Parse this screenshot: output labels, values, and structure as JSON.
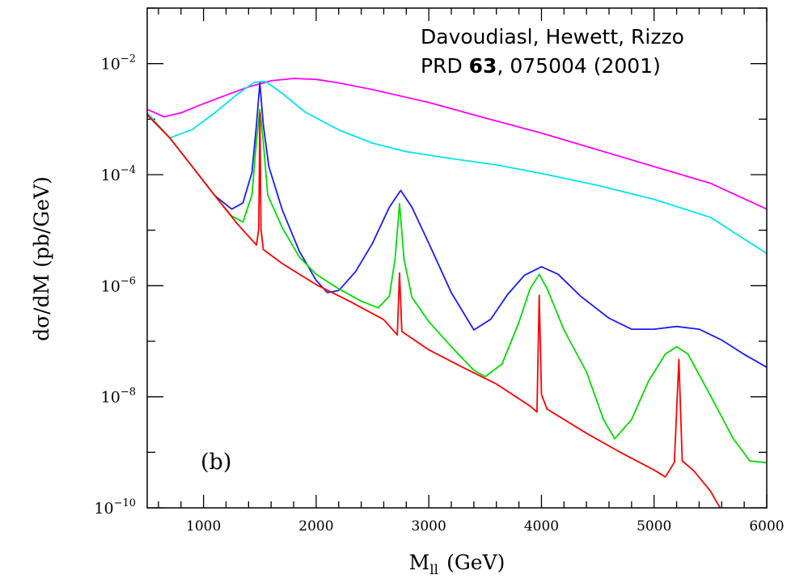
{
  "chart_data": {
    "type": "line",
    "xlabel_main": "M",
    "xlabel_sub": "ll",
    "xlabel_unit": "(GeV)",
    "ylabel": "dσ/dM (pb/GeV)",
    "xlim": [
      500,
      6000
    ],
    "ylim": [
      1e-10,
      0.1
    ],
    "yscale": "log",
    "x_ticks": [
      1000,
      2000,
      3000,
      4000,
      5000,
      6000
    ],
    "y_ticks": [
      {
        "value": 1e-10,
        "base": "10",
        "exp": "−10"
      },
      {
        "value": 1e-08,
        "base": "10",
        "exp": "−8"
      },
      {
        "value": 1e-06,
        "base": "10",
        "exp": "−6"
      },
      {
        "value": 0.0001,
        "base": "10",
        "exp": "−4"
      },
      {
        "value": 0.01,
        "base": "10",
        "exp": "−2"
      }
    ],
    "annotation": {
      "line1": "Davoudiasl, Hewett, Rizzo",
      "line2_prefix": "PRD ",
      "line2_bold": "63",
      "line2_suffix": ", 075004 (2001)"
    },
    "panel_label": "(b)",
    "series": [
      {
        "color": "#ff00ff",
        "points": [
          [
            500,
            0.0015
          ],
          [
            650,
            0.0011
          ],
          [
            800,
            0.0013
          ],
          [
            1000,
            0.0019
          ],
          [
            1200,
            0.0027
          ],
          [
            1400,
            0.0038
          ],
          [
            1600,
            0.0049
          ],
          [
            1800,
            0.0054
          ],
          [
            2000,
            0.0052
          ],
          [
            2200,
            0.0045
          ],
          [
            2500,
            0.0034
          ],
          [
            3000,
            0.002
          ],
          [
            3500,
            0.00105
          ],
          [
            4000,
            0.00056
          ],
          [
            4500,
            0.00028
          ],
          [
            5000,
            0.00014
          ],
          [
            5500,
            7e-05
          ],
          [
            6000,
            2.4e-05
          ]
        ]
      },
      {
        "color": "#00e5ee",
        "points": [
          [
            500,
            0.0013
          ],
          [
            700,
            0.00046
          ],
          [
            900,
            0.00065
          ],
          [
            1100,
            0.0013
          ],
          [
            1300,
            0.0028
          ],
          [
            1450,
            0.0046
          ],
          [
            1550,
            0.0048
          ],
          [
            1700,
            0.0029
          ],
          [
            1900,
            0.00135
          ],
          [
            2200,
            0.00064
          ],
          [
            2500,
            0.00037
          ],
          [
            2800,
            0.00026
          ],
          [
            3200,
            0.000195
          ],
          [
            3600,
            0.00015
          ],
          [
            4000,
            0.000105
          ],
          [
            4500,
            6.4e-05
          ],
          [
            5000,
            3.6e-05
          ],
          [
            5500,
            1.7e-05
          ],
          [
            6000,
            3.8e-06
          ]
        ]
      },
      {
        "color": "#1a1aff",
        "points": [
          [
            500,
            0.0012
          ],
          [
            700,
            0.00046
          ],
          [
            900,
            0.00014
          ],
          [
            1100,
            4.2e-05
          ],
          [
            1250,
            2.4e-05
          ],
          [
            1350,
            3.1e-05
          ],
          [
            1430,
            0.00011
          ],
          [
            1470,
            0.0008
          ],
          [
            1500,
            0.0045
          ],
          [
            1530,
            0.0008
          ],
          [
            1580,
            0.00014
          ],
          [
            1700,
            2.3e-05
          ],
          [
            1850,
            4.2e-06
          ],
          [
            2000,
            1.25e-06
          ],
          [
            2100,
            7.5e-07
          ],
          [
            2200,
            8.2e-07
          ],
          [
            2350,
            1.8e-06
          ],
          [
            2500,
            5.8e-06
          ],
          [
            2650,
            2.6e-05
          ],
          [
            2750,
            5.2e-05
          ],
          [
            2850,
            2.6e-05
          ],
          [
            3000,
            5.8e-06
          ],
          [
            3200,
            7.5e-07
          ],
          [
            3400,
            1.6e-07
          ],
          [
            3550,
            2.5e-07
          ],
          [
            3700,
            7e-07
          ],
          [
            3850,
            1.55e-06
          ],
          [
            4000,
            2.2e-06
          ],
          [
            4150,
            1.6e-06
          ],
          [
            4350,
            6.4e-07
          ],
          [
            4600,
            2.6e-07
          ],
          [
            4800,
            1.65e-07
          ],
          [
            5000,
            1.65e-07
          ],
          [
            5200,
            1.85e-07
          ],
          [
            5400,
            1.65e-07
          ],
          [
            5600,
            1.05e-07
          ],
          [
            5800,
            5.8e-08
          ],
          [
            6000,
            3.4e-08
          ]
        ]
      },
      {
        "color": "#00dd00",
        "points": [
          [
            500,
            0.0012
          ],
          [
            700,
            0.00046
          ],
          [
            900,
            0.00014
          ],
          [
            1100,
            4.2e-05
          ],
          [
            1250,
            1.8e-05
          ],
          [
            1350,
            1.4e-05
          ],
          [
            1430,
            4.3e-05
          ],
          [
            1470,
            0.0004
          ],
          [
            1500,
            0.0015
          ],
          [
            1530,
            0.0004
          ],
          [
            1570,
            4.3e-05
          ],
          [
            1700,
            1.1e-05
          ],
          [
            1850,
            3.3e-06
          ],
          [
            2000,
            1.6e-06
          ],
          [
            2200,
            8.8e-07
          ],
          [
            2400,
            5.3e-07
          ],
          [
            2550,
            4e-07
          ],
          [
            2650,
            6.5e-07
          ],
          [
            2700,
            3e-06
          ],
          [
            2740,
            3e-05
          ],
          [
            2780,
            3e-06
          ],
          [
            2850,
            6.2e-07
          ],
          [
            3000,
            2.25e-07
          ],
          [
            3200,
            8e-08
          ],
          [
            3400,
            3e-08
          ],
          [
            3500,
            2.3e-08
          ],
          [
            3650,
            3.9e-08
          ],
          [
            3800,
            2.2e-07
          ],
          [
            3900,
            8.9e-07
          ],
          [
            3980,
            1.6e-06
          ],
          [
            4050,
            8.9e-07
          ],
          [
            4200,
            1.6e-07
          ],
          [
            4400,
            2.8e-08
          ],
          [
            4550,
            3.9e-09
          ],
          [
            4650,
            1.75e-09
          ],
          [
            4800,
            3.9e-09
          ],
          [
            4950,
            1.9e-08
          ],
          [
            5100,
            5.9e-08
          ],
          [
            5200,
            8e-08
          ],
          [
            5300,
            5.9e-08
          ],
          [
            5500,
            1.05e-08
          ],
          [
            5700,
            1.8e-09
          ],
          [
            5850,
            7e-10
          ],
          [
            6000,
            6.5e-10
          ]
        ]
      },
      {
        "color": "#ff0000",
        "points": [
          [
            500,
            0.0012
          ],
          [
            700,
            0.00046
          ],
          [
            900,
            0.00014
          ],
          [
            1100,
            4.2e-05
          ],
          [
            1300,
            1.3e-05
          ],
          [
            1470,
            5.4e-06
          ],
          [
            1490,
            1.05e-05
          ],
          [
            1500,
            0.0013
          ],
          [
            1510,
            1.05e-05
          ],
          [
            1530,
            4.5e-06
          ],
          [
            1700,
            2.5e-06
          ],
          [
            2000,
            1.05e-06
          ],
          [
            2300,
            5.2e-07
          ],
          [
            2600,
            2.45e-07
          ],
          [
            2720,
            1.3e-07
          ],
          [
            2740,
            1.7e-06
          ],
          [
            2760,
            1.5e-07
          ],
          [
            3000,
            7e-08
          ],
          [
            3300,
            3.4e-08
          ],
          [
            3600,
            1.7e-08
          ],
          [
            3900,
            6.8e-09
          ],
          [
            3960,
            5.3e-09
          ],
          [
            3980,
            6.7e-07
          ],
          [
            4000,
            1.1e-08
          ],
          [
            4050,
            6e-09
          ],
          [
            4400,
            2.2e-09
          ],
          [
            4700,
            1e-09
          ],
          [
            5000,
            4.8e-10
          ],
          [
            5100,
            3.6e-10
          ],
          [
            5180,
            6.6e-10
          ],
          [
            5220,
            4.7e-08
          ],
          [
            5250,
            7e-10
          ],
          [
            5350,
            4.7e-10
          ],
          [
            5500,
            2e-10
          ],
          [
            5620,
            7.5e-11
          ]
        ]
      }
    ]
  }
}
